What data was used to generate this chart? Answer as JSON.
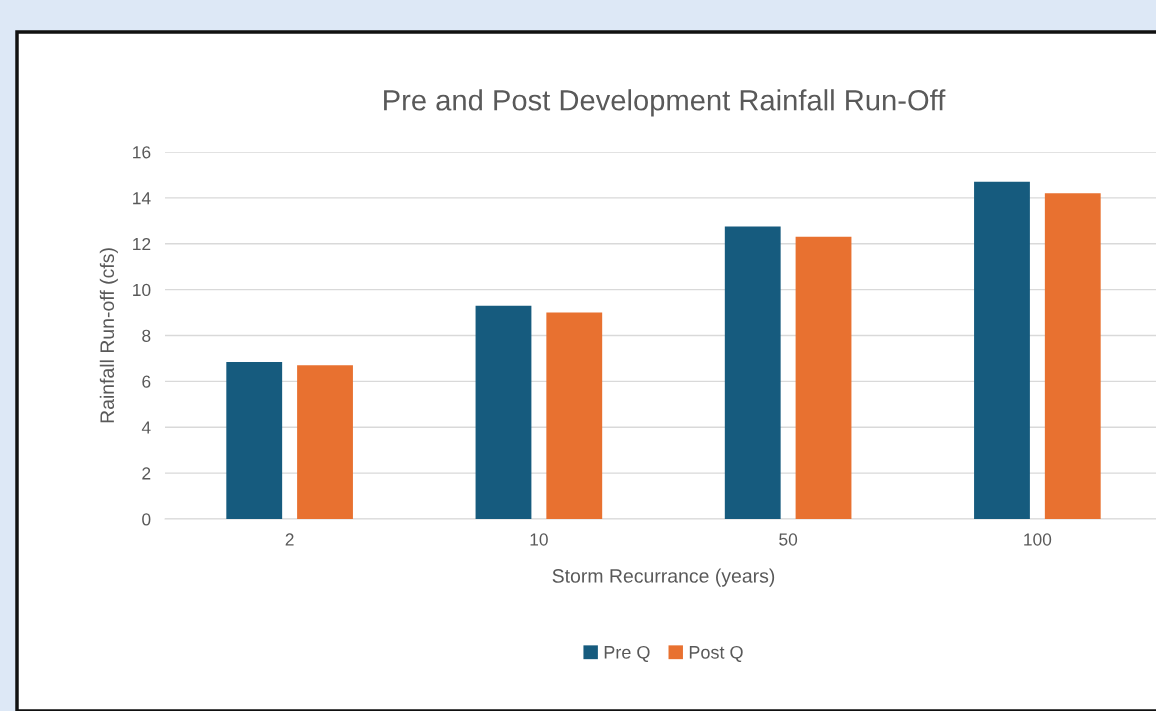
{
  "chart_data": {
    "type": "bar",
    "title": "Pre and Post Development Rainfall Run-Off",
    "xlabel": "Storm Recurrance (years)",
    "ylabel": "Rainfall Run-off (cfs)",
    "categories": [
      "2",
      "10",
      "50",
      "100"
    ],
    "series": [
      {
        "name": "Pre Q",
        "color": "#165b7e",
        "values": [
          6.85,
          9.3,
          12.75,
          14.7
        ]
      },
      {
        "name": "Post Q",
        "color": "#e87130",
        "values": [
          6.7,
          9.0,
          12.3,
          14.2
        ]
      }
    ],
    "ylim": [
      0,
      16
    ],
    "yticks": [
      0,
      2,
      4,
      6,
      8,
      10,
      12,
      14,
      16
    ],
    "grid": "y",
    "legend": "bottom"
  }
}
